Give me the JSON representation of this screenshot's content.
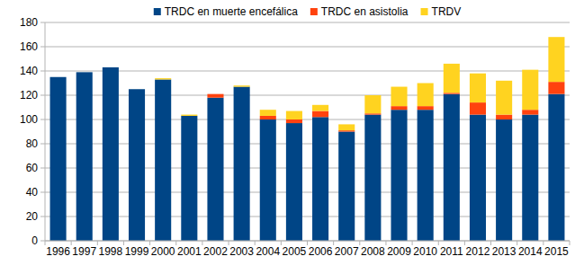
{
  "chart_data": {
    "type": "bar",
    "stacked": true,
    "grid": true,
    "legend": "top",
    "categories": [
      "1996",
      "1997",
      "1998",
      "1999",
      "2000",
      "2001",
      "2002",
      "2003",
      "2004",
      "2005",
      "2006",
      "2007",
      "2008",
      "2009",
      "2010",
      "2011",
      "2012",
      "2013",
      "2014",
      "2015"
    ],
    "series": [
      {
        "name": "TRDC en muerte encefálica",
        "color": "#004586",
        "values": [
          135,
          139,
          143,
          125,
          133,
          103,
          118,
          127,
          100,
          97,
          102,
          90,
          104,
          108,
          108,
          121,
          104,
          100,
          104,
          121
        ]
      },
      {
        "name": "TRDC en asistolia",
        "color": "#ff420e",
        "values": [
          0,
          0,
          0,
          0,
          0,
          0,
          3,
          0,
          3,
          3,
          5,
          1,
          1,
          3,
          3,
          1,
          10,
          4,
          4,
          10
        ]
      },
      {
        "name": "TRDV",
        "color": "#ffd320",
        "values": [
          0,
          0,
          0,
          0,
          1,
          1,
          0,
          1,
          5,
          7,
          5,
          5,
          15,
          16,
          19,
          24,
          24,
          28,
          33,
          37
        ]
      }
    ],
    "ylim": [
      0,
      180
    ],
    "yticks": [
      0,
      20,
      40,
      60,
      80,
      100,
      120,
      140,
      160,
      180
    ]
  }
}
